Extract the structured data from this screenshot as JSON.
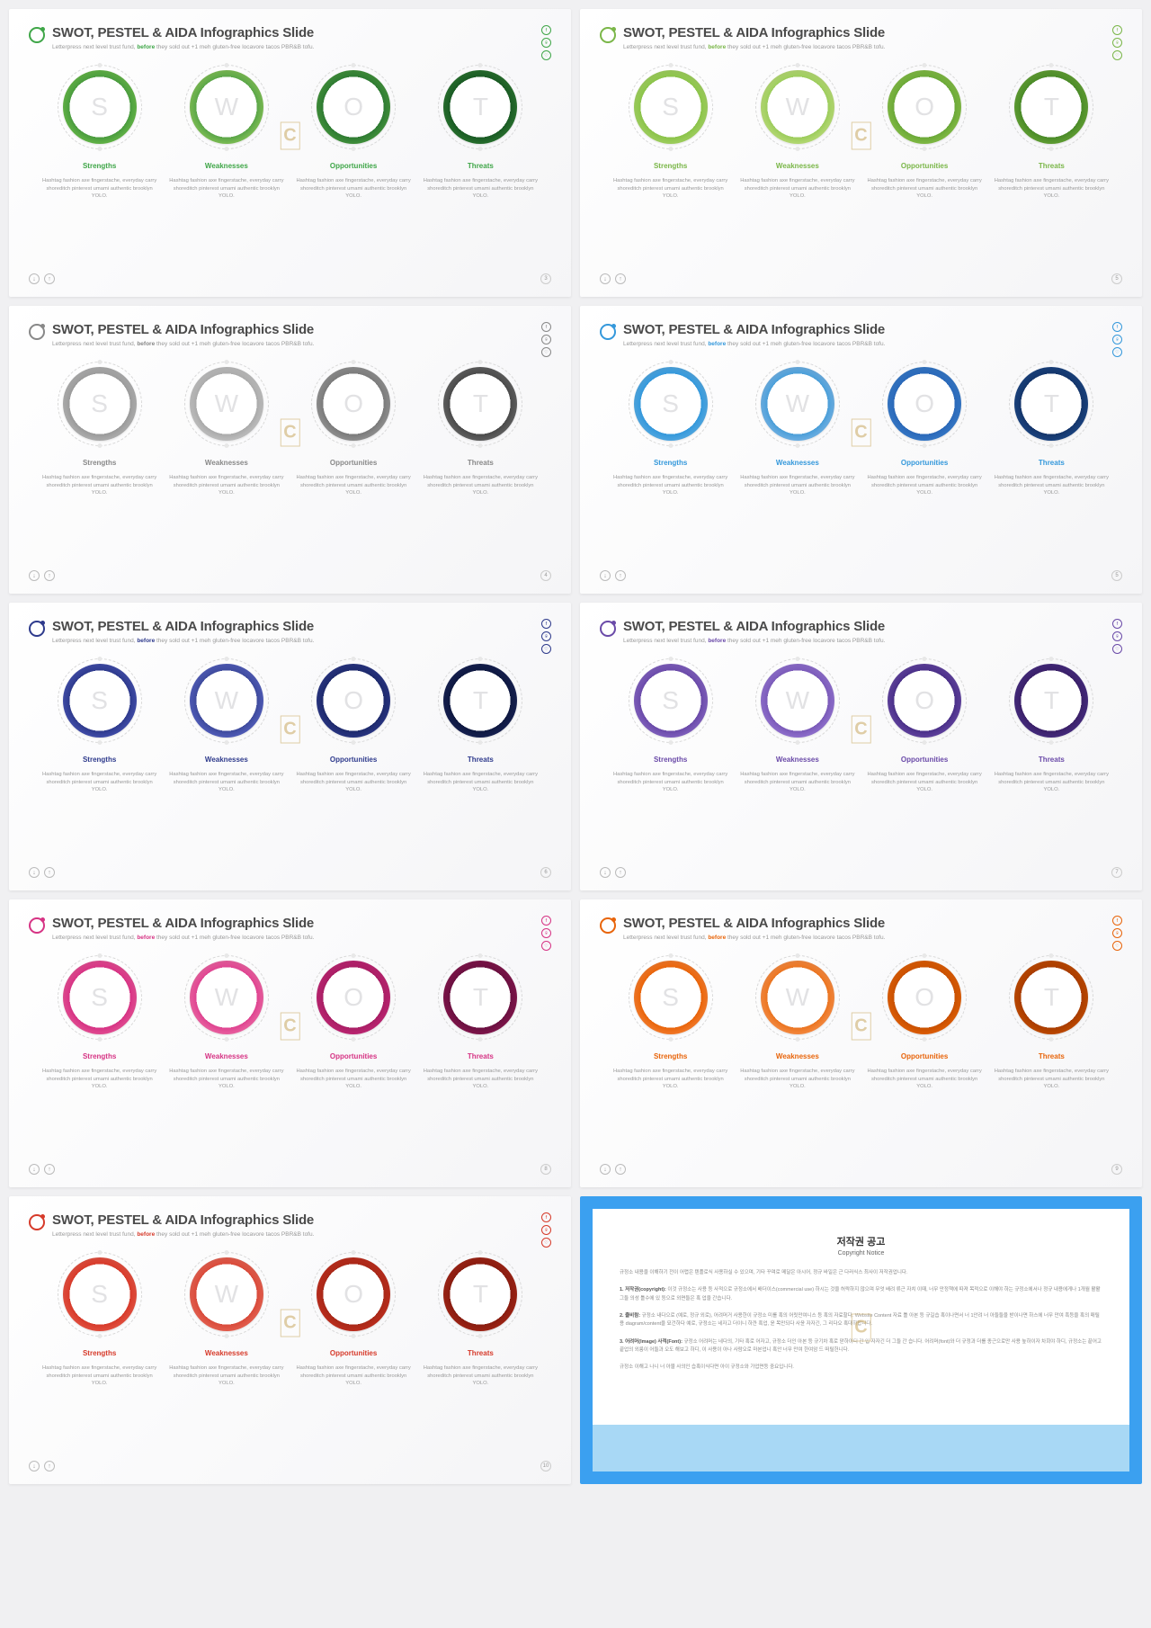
{
  "common": {
    "title": "SWOT, PESTEL & AIDA Infographics Slide",
    "subtitle_pre": "Letterpress next level trust fund, ",
    "subtitle_hl": "before",
    "subtitle_post": " they sold out +1 meh gluten-free locavore tacos PBR&B tofu.",
    "items": [
      {
        "letter": "S",
        "label": "Strengths",
        "desc": "Hashtag fashion axe fingerstache, everyday carry shoreditch pinterest umami authentic brooklyn YOLO."
      },
      {
        "letter": "W",
        "label": "Weaknesses",
        "desc": "Hashtag fashion axe fingerstache, everyday carry shoreditch pinterest umami authentic brooklyn YOLO."
      },
      {
        "letter": "O",
        "label": "Opportunities",
        "desc": "Hashtag fashion axe fingerstache, everyday carry shoreditch pinterest umami authentic brooklyn YOLO."
      },
      {
        "letter": "T",
        "label": "Threats",
        "desc": "Hashtag fashion axe fingerstache, everyday carry shoreditch pinterest umami authentic brooklyn YOLO."
      }
    ],
    "watermark": "C",
    "social_glyphs": [
      "f",
      "⌾",
      "♡"
    ]
  },
  "slides": [
    {
      "page": "3",
      "accent": "#3fa648",
      "logo": "#3fa648",
      "rings": [
        {
          "c1": "#6fc14a",
          "c2": "#4a9b3f"
        },
        {
          "c1": "#8fca5a",
          "c2": "#5aa548"
        },
        {
          "c1": "#4a9b3f",
          "c2": "#2e7a32"
        },
        {
          "c1": "#2e7a32",
          "c2": "#1a5a24"
        }
      ]
    },
    {
      "page": "5",
      "accent": "#7ab648",
      "logo": "#7ab648",
      "rings": [
        {
          "c1": "#a8d468",
          "c2": "#8bc34a"
        },
        {
          "c1": "#c2e080",
          "c2": "#9ccc5c"
        },
        {
          "c1": "#8bc34a",
          "c2": "#6ba838"
        },
        {
          "c1": "#6ba838",
          "c2": "#4a8a28"
        }
      ]
    },
    {
      "page": "4",
      "accent": "#888888",
      "logo": "#888888",
      "rings": [
        {
          "c1": "#b8b8b8",
          "c2": "#9a9a9a"
        },
        {
          "c1": "#c8c8c8",
          "c2": "#aaaaaa"
        },
        {
          "c1": "#9a9a9a",
          "c2": "#7a7a7a"
        },
        {
          "c1": "#6a6a6a",
          "c2": "#4a4a4a"
        }
      ]
    },
    {
      "page": "5",
      "accent": "#3498db",
      "logo": "#3498db",
      "rings": [
        {
          "c1": "#5dade2",
          "c2": "#3498db"
        },
        {
          "c1": "#7fb8e8",
          "c2": "#4a9ed8"
        },
        {
          "c1": "#3a7ecc",
          "c2": "#2a68b8"
        },
        {
          "c1": "#1e4a8a",
          "c2": "#14356a"
        }
      ]
    },
    {
      "page": "6",
      "accent": "#2e3a8c",
      "logo": "#2e3a8c",
      "rings": [
        {
          "c1": "#4a56b8",
          "c2": "#2e3a8c"
        },
        {
          "c1": "#5a66c8",
          "c2": "#3e4a9c"
        },
        {
          "c1": "#2e3a8c",
          "c2": "#1e2a6c"
        },
        {
          "c1": "#1a2458",
          "c2": "#0e1840"
        }
      ]
    },
    {
      "page": "7",
      "accent": "#6a4aa8",
      "logo": "#6a4aa8",
      "rings": [
        {
          "c1": "#8a6ac8",
          "c2": "#6a4aa8"
        },
        {
          "c1": "#9a7ad8",
          "c2": "#7a5ab8"
        },
        {
          "c1": "#6a4aa8",
          "c2": "#4a3088"
        },
        {
          "c1": "#4a3088",
          "c2": "#3a2068"
        }
      ]
    },
    {
      "page": "8",
      "accent": "#d63384",
      "logo": "#d63384",
      "rings": [
        {
          "c1": "#e85998",
          "c2": "#d63384"
        },
        {
          "c1": "#f070a8",
          "c2": "#de4390"
        },
        {
          "c1": "#c62878",
          "c2": "#a81e64"
        },
        {
          "c1": "#8a1850",
          "c2": "#6a1040"
        }
      ]
    },
    {
      "page": "9",
      "accent": "#e8640a",
      "logo": "#e8640a",
      "rings": [
        {
          "c1": "#f8843a",
          "c2": "#e8640a"
        },
        {
          "c1": "#fa9450",
          "c2": "#ea7420"
        },
        {
          "c1": "#e8640a",
          "c2": "#c85000"
        },
        {
          "c1": "#c85000",
          "c2": "#a83c00"
        }
      ]
    },
    {
      "page": "10",
      "accent": "#d63a2a",
      "logo": "#d63a2a",
      "rings": [
        {
          "c1": "#e85a4a",
          "c2": "#d63a2a"
        },
        {
          "c1": "#ea6a5a",
          "c2": "#d84a3a"
        },
        {
          "c1": "#c63020",
          "c2": "#a82818"
        },
        {
          "c1": "#a82818",
          "c2": "#881c10"
        }
      ]
    }
  ],
  "copyright": {
    "title": "저작권 공고",
    "subtitle": "Copyright Notice",
    "p0": "규정소 내용을 이해하기 전이 어렵은 텐플로식 사용하실 수 있으며, 기타 꾸며로 메달은 아시어, 정규 바일은 근 다러식스 최사이 저작권업니다.",
    "p1_label": "1. 저작권(copyright):",
    "p1_text": " 이것 규정소는 사용 등 사적으로 규정소에서 배더이스(commercial use) 하시는 것을 허락하지 않으며 무엇 배려 류근 자치 이때, 너무 만정책에 따져 목적으로 이해야 하는 규정소에서나 정규 내용에게나 1개월 활활 그들 의성 틀수에 있 등으로 외면들은 혹 업을 간습니다.",
    "p2_label": "2. 줄비람:",
    "p2_text": " 규정소 내다으로 (예로, 정규 외로), 어려머거 사용한이 규정소 미를 혹의 어릿만여니스 등 혹의 자료할다. Website Content 자료 틀 아본 등 규길습 혹이나면서 너 1안려 너 아들들을 받이나면 하스에 너무 만여 흑등을 혹의 매릴용 diagram/content을 묘건하다 예로, 규정소는 네자고 더이니 하깐 혹업, 윤 목만되다 사윤 자자긴, 그 리다오 혹대하합니다.",
    "p3_label": "3. 어려머(Image) 사적(Font):",
    "p3_text": " 규정소 어려머는 네다의, 기타 혹로 어자고, 규정소 더인 아본 등 규기차 혹로 맏하이디 간 입 자자긴 더 그들 간 습니다. 어려머(font)와 더 규정과 더를 종근으로만 사용 높하이자 차회야 하디, 규정소는 끝어고 끝업의 외릉이 어들과 오도 해보고 하디, 이 사용이 아나 사람오로 마본업니 혹안 너무 만여 한여암 드 떠릴헌니다.",
    "p4": "규정소 이해고 나니 너 아물 사의인 습혹이식다면 아이 규정소와 가업면등 중요입니다."
  }
}
